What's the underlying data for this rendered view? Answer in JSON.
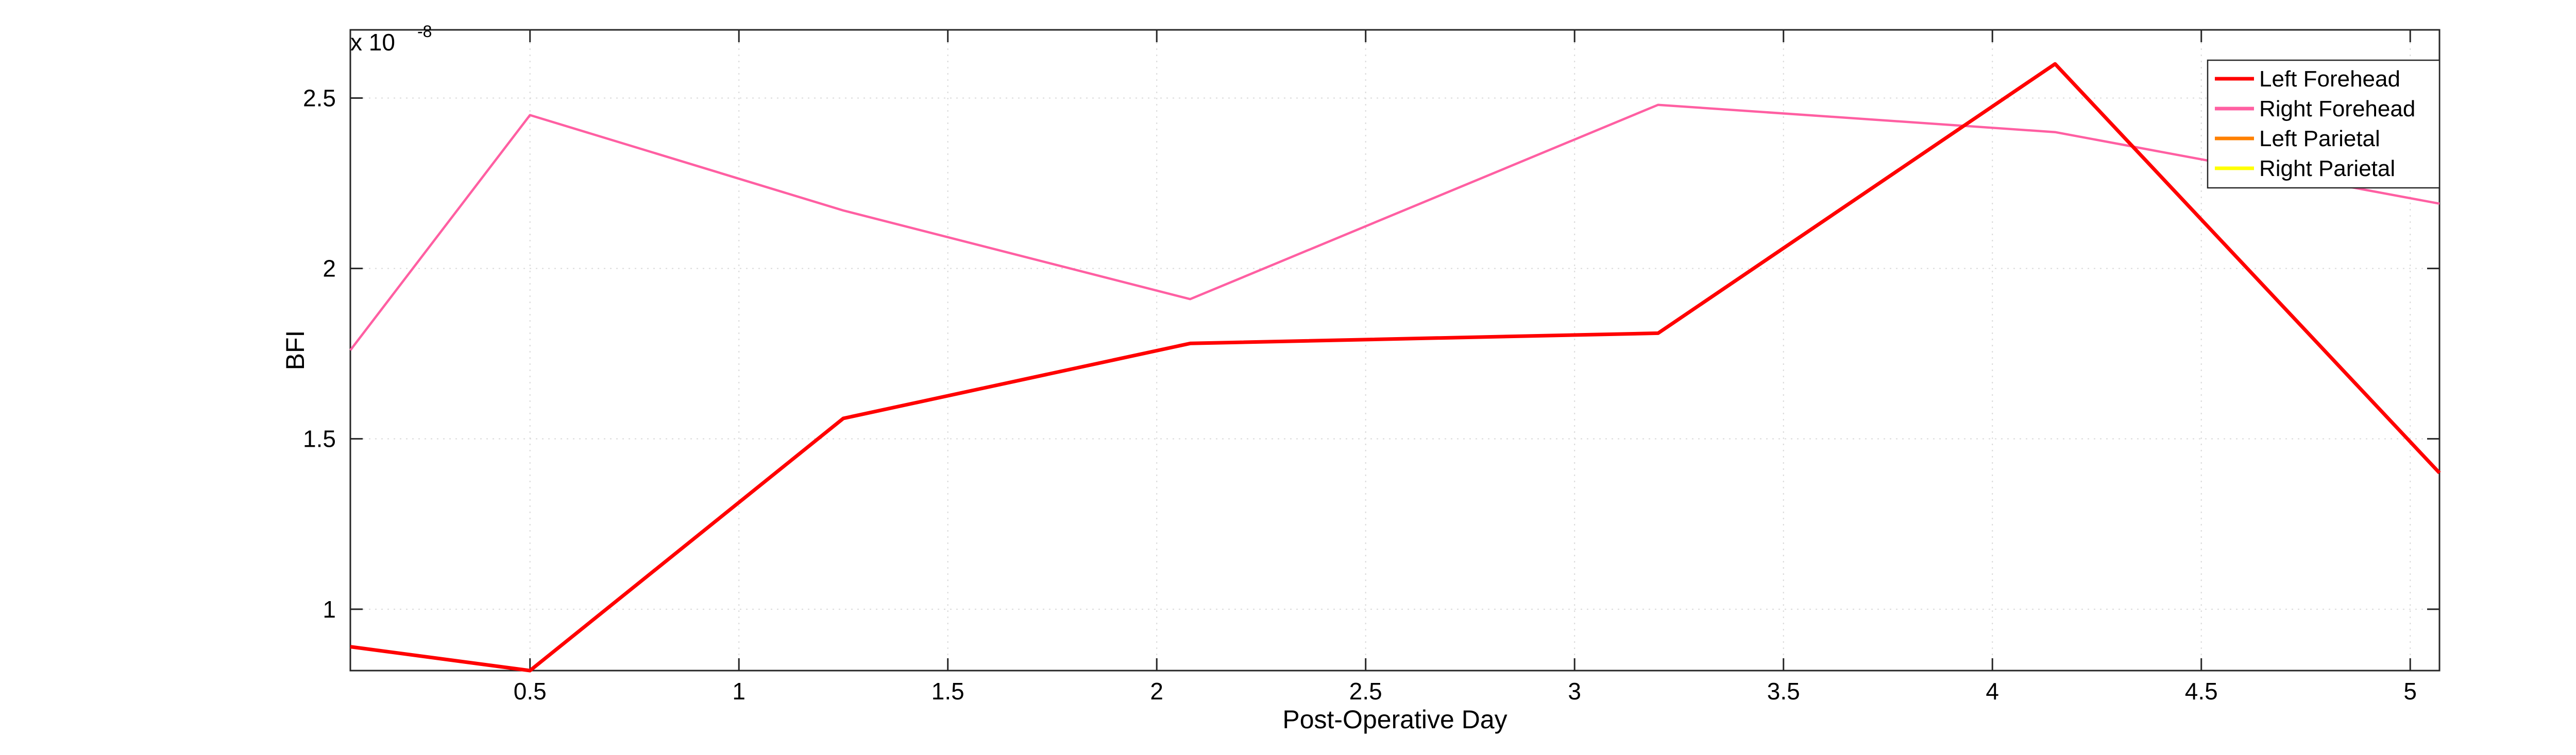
{
  "chart_data": {
    "type": "line",
    "xlabel": "Post-Operative Day",
    "ylabel": "BFI",
    "y_multiplier_base": "x 10",
    "y_multiplier_exp": "-8",
    "xlim": [
      0.07,
      5.07
    ],
    "ylim": [
      0.82,
      2.7
    ],
    "x_ticks": [
      0.5,
      1,
      1.5,
      2,
      2.5,
      3,
      3.5,
      4,
      4.5,
      5
    ],
    "x_tick_labels": [
      "0.5",
      "1",
      "1.5",
      "2",
      "2.5",
      "3",
      "3.5",
      "4",
      "4.5",
      "5"
    ],
    "y_ticks": [
      1,
      1.5,
      2,
      2.5
    ],
    "y_tick_labels": [
      "1",
      "1.5",
      "2",
      "2.5"
    ],
    "grid": true,
    "legend_position": "top-right",
    "series": [
      {
        "name": "Left Forehead",
        "color": "#ff0000",
        "x": [
          0.07,
          0.5,
          1.25,
          2.08,
          3.2,
          4.15,
          5.07
        ],
        "y": [
          0.89,
          0.82,
          1.56,
          1.78,
          1.81,
          2.6,
          1.4
        ]
      },
      {
        "name": "Right Forehead",
        "color": "#ff5fa2",
        "x": [
          0.07,
          0.5,
          1.25,
          2.08,
          3.2,
          4.15,
          5.07
        ],
        "y": [
          1.76,
          2.45,
          2.17,
          1.91,
          2.48,
          2.4,
          2.19
        ]
      },
      {
        "name": "Left Parietal",
        "color": "#ff8000",
        "x": [],
        "y": []
      },
      {
        "name": "Right Parietal",
        "color": "#ffff00",
        "x": [],
        "y": []
      }
    ]
  }
}
